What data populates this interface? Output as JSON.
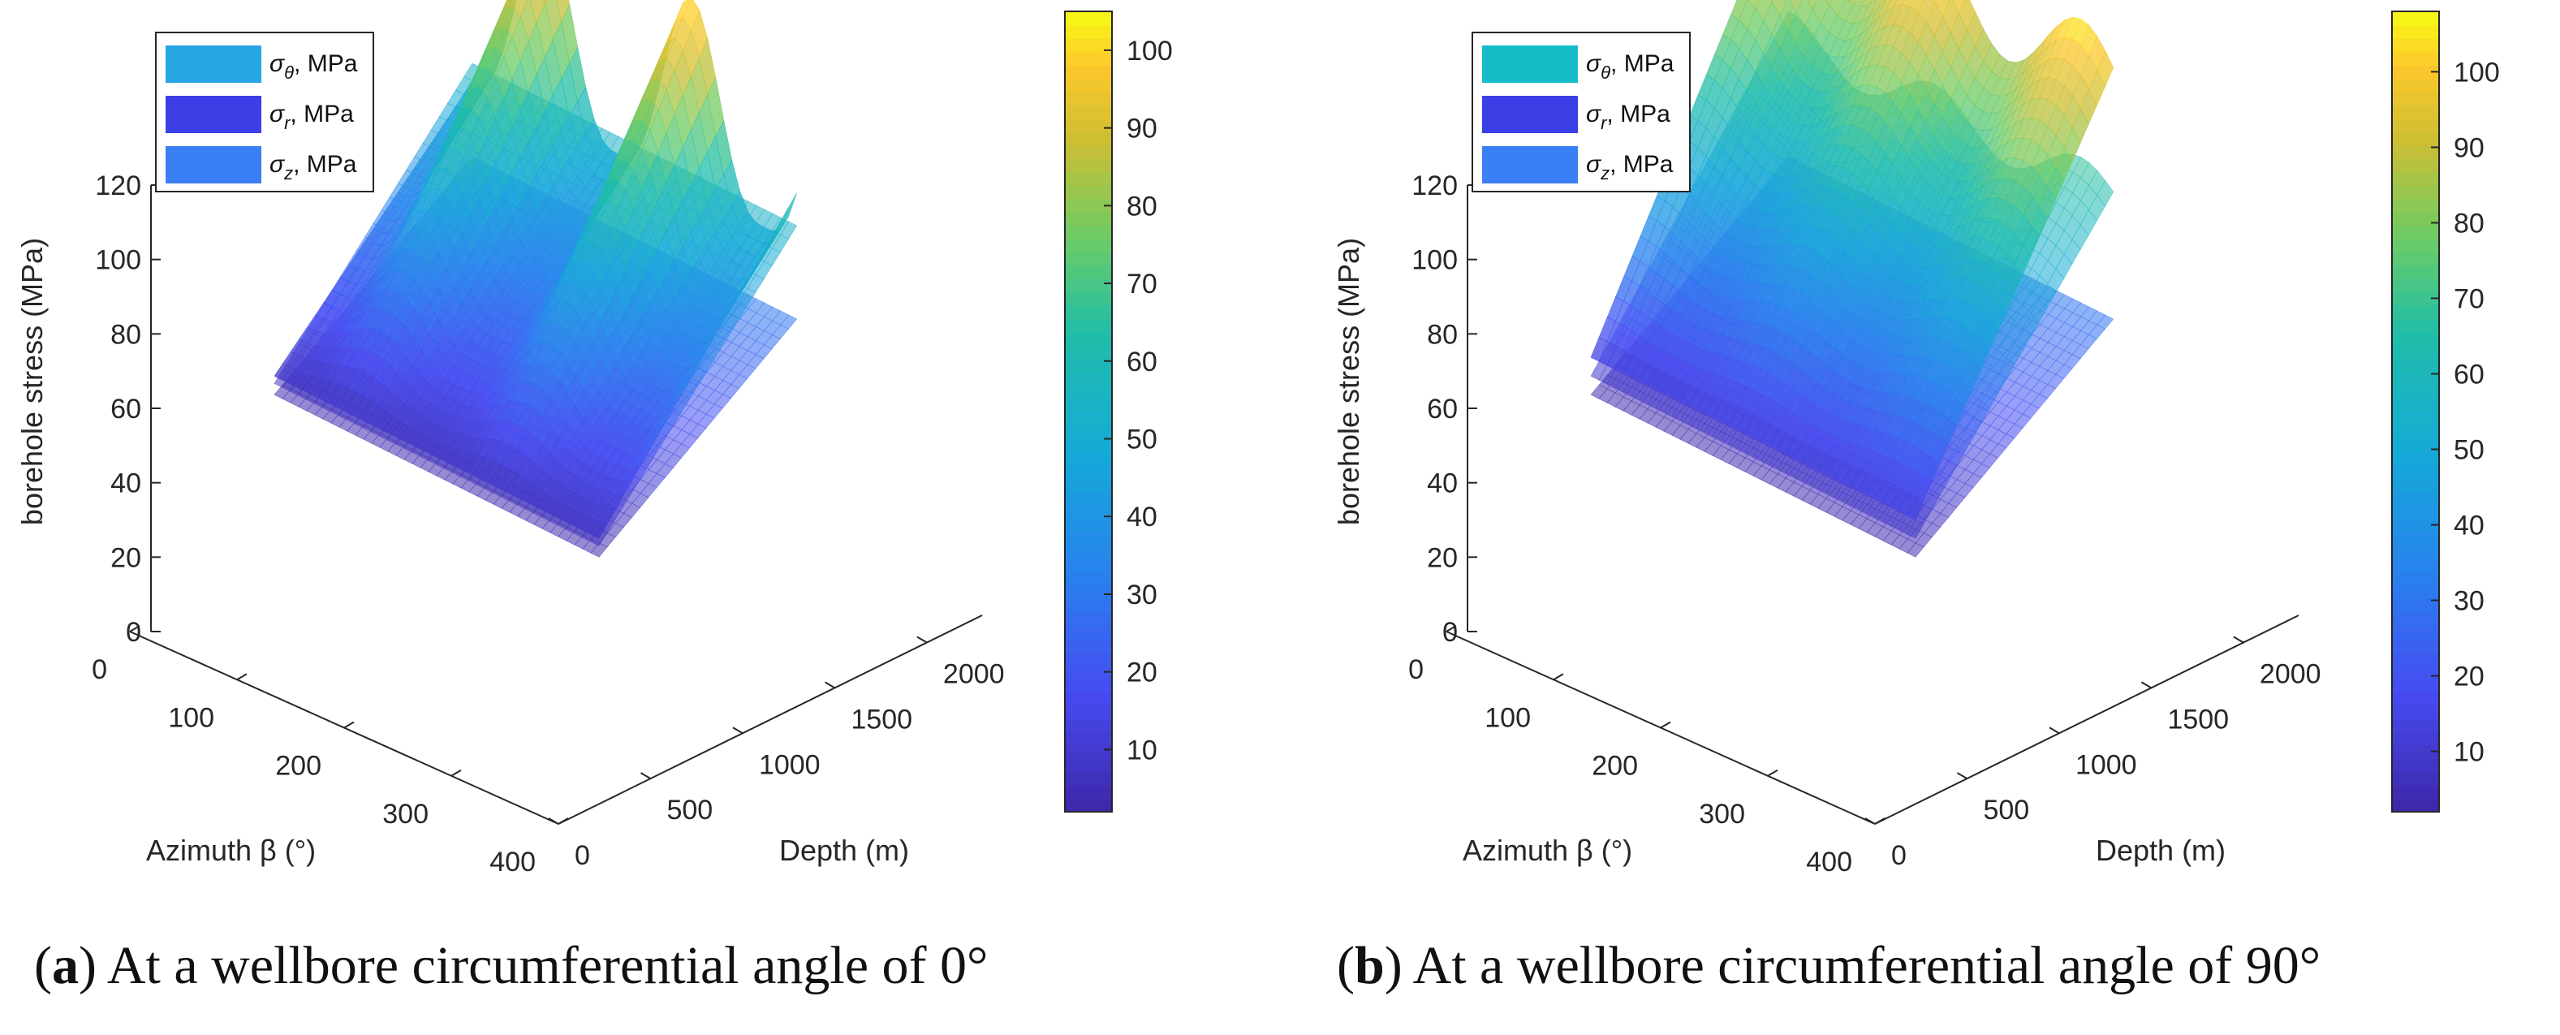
{
  "figure": {
    "caption_a_label": "a",
    "caption_a_text": "At a wellbore circumferential angle of 0°",
    "caption_b_label": "b",
    "caption_b_text": "At a wellbore circumferential angle of 90°"
  },
  "chart_data": [
    {
      "type": "surface3d",
      "panel": "a",
      "zlabel": "borehole stress (MPa)",
      "xlabel": "Azimuth β (°)",
      "ylabel": "Depth (m)",
      "z_ticks": [
        0,
        20,
        40,
        60,
        80,
        100,
        120
      ],
      "x_ticks": [
        0,
        100,
        200,
        300,
        400
      ],
      "y_ticks": [
        0,
        500,
        1000,
        1500,
        2000
      ],
      "xlim": [
        0,
        400
      ],
      "ylim": [
        0,
        2300
      ],
      "zlim": [
        0,
        120
      ],
      "colorbar": {
        "ticks": [
          10,
          20,
          30,
          40,
          50,
          60,
          70,
          80,
          90,
          100
        ],
        "range": [
          2,
          105
        ],
        "colormap": "parula"
      },
      "legend": {
        "position": "top-left",
        "entries": [
          {
            "sym": "σ",
            "sub": "θ",
            "unit": ", MPa",
            "color": "#27a6e3"
          },
          {
            "sym": "σ",
            "sub": "r",
            "unit": ", MPa",
            "color": "#3c3ee6"
          },
          {
            "sym": "σ",
            "sub": "z",
            "unit": ", MPa",
            "color": "#3b7ff5"
          }
        ]
      },
      "series": [
        {
          "name": "σθ",
          "shape": "two peaks along azimuth",
          "azimuth_of_peaks": [
            90,
            270
          ],
          "value_at_max_depth_peak": 102,
          "value_at_max_depth_trough": 50,
          "value_at_min_depth": 8
        },
        {
          "name": "σr",
          "shape": "flat in azimuth",
          "value_at_min_depth": 3,
          "value_at_max_depth": 30
        },
        {
          "name": "σz",
          "shape": "flat in azimuth",
          "value_at_min_depth": 6,
          "value_at_max_depth": 55
        }
      ]
    },
    {
      "type": "surface3d",
      "panel": "b",
      "zlabel": "borehole stress (MPa)",
      "xlabel": "Azimuth β (°)",
      "ylabel": "Depth (m)",
      "z_ticks": [
        0,
        20,
        40,
        60,
        80,
        100,
        120
      ],
      "x_ticks": [
        0,
        100,
        200,
        300,
        400
      ],
      "y_ticks": [
        0,
        500,
        1000,
        1500,
        2000
      ],
      "xlim": [
        0,
        400
      ],
      "ylim": [
        0,
        2300
      ],
      "zlim": [
        0,
        120
      ],
      "colorbar": {
        "ticks": [
          10,
          20,
          30,
          40,
          50,
          60,
          70,
          80,
          90,
          100
        ],
        "range": [
          2,
          108
        ],
        "colormap": "parula"
      },
      "legend": {
        "position": "top-left",
        "entries": [
          {
            "sym": "σ",
            "sub": "θ",
            "unit": ", MPa",
            "color": "#14bdc7"
          },
          {
            "sym": "σ",
            "sub": "r",
            "unit": ", MPa",
            "color": "#3c3ee6"
          },
          {
            "sym": "σ",
            "sub": "z",
            "unit": ", MPa",
            "color": "#3b7ff5"
          }
        ]
      },
      "series": [
        {
          "name": "σθ",
          "shape": "wavy high plateau",
          "value_at_max_depth_peak": 106,
          "value_at_max_depth_trough": 85,
          "value_at_min_depth": 13
        },
        {
          "name": "σr",
          "shape": "flat in azimuth",
          "value_at_min_depth": 3,
          "value_at_max_depth": 30
        },
        {
          "name": "σz",
          "shape": "wavy",
          "value_at_min_depth": 8,
          "value_at_max_depth": 63
        }
      ]
    }
  ]
}
